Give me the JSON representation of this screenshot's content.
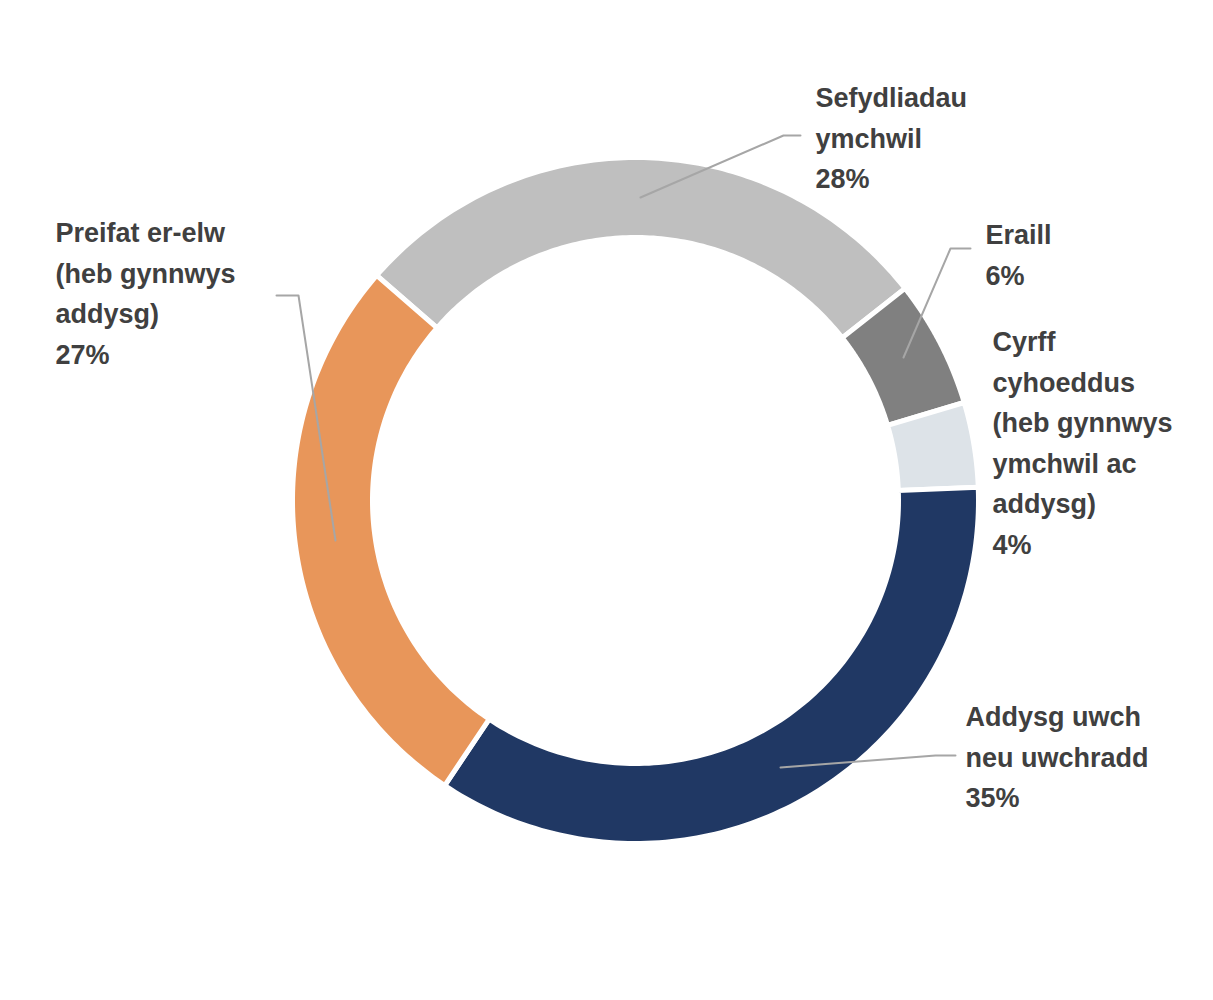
{
  "chart_data": {
    "type": "pie",
    "categories": [
      "Sefydliadau ymchwil",
      "Eraill",
      "Cyrff cyhoeddus (heb gynnwys ymchwil ac addysg)",
      "Addysg uwch neu uwchradd",
      "Preifat er-elw (heb gynnwys addysg)"
    ],
    "values": [
      28,
      6,
      4,
      35,
      27
    ],
    "value_labels": [
      "28%",
      "6%",
      "4%",
      "35%",
      "27%"
    ],
    "colors": [
      "#bfbfbf",
      "#808080",
      "#dde3e8",
      "#203864",
      "#e8965a"
    ],
    "data_labels": true
  }
}
